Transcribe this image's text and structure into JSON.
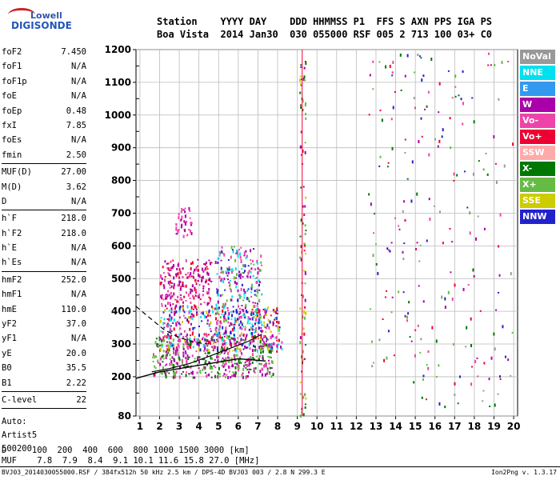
{
  "logo": {
    "line1": "Lowell",
    "line2": "DIGISONDE"
  },
  "header": {
    "line1": "Station    YYYY DAY    DDD HHMMSS P1  FFS S AXN PPS IGA PS",
    "line2": "Boa Vista  2014 Jan30  030 055000 RSF 005 2 713 100 03+ C0"
  },
  "params_group1": [
    {
      "name": "foF2",
      "value": "7.450"
    },
    {
      "name": "foF1",
      "value": "N/A"
    },
    {
      "name": "foF1p",
      "value": "N/A"
    },
    {
      "name": "foE",
      "value": "N/A"
    },
    {
      "name": "foEp",
      "value": "0.48"
    },
    {
      "name": "fxI",
      "value": "7.85"
    },
    {
      "name": "foEs",
      "value": "N/A"
    },
    {
      "name": "fmin",
      "value": "2.50"
    }
  ],
  "params_group2": [
    {
      "name": "MUF(D)",
      "value": "27.00"
    },
    {
      "name": "M(D)",
      "value": "3.62"
    },
    {
      "name": "D",
      "value": "N/A"
    }
  ],
  "params_group3": [
    {
      "name": "h`F",
      "value": "218.0"
    },
    {
      "name": "h`F2",
      "value": "218.0"
    },
    {
      "name": "h`E",
      "value": "N/A"
    },
    {
      "name": "h`Es",
      "value": "N/A"
    }
  ],
  "params_group4": [
    {
      "name": "hmF2",
      "value": "252.0"
    },
    {
      "name": "hmF1",
      "value": "N/A"
    },
    {
      "name": "hmE",
      "value": "110.0"
    },
    {
      "name": "yF2",
      "value": "37.0"
    },
    {
      "name": "yF1",
      "value": "N/A"
    },
    {
      "name": "yE",
      "value": "20.0"
    },
    {
      "name": "B0",
      "value": "35.5"
    },
    {
      "name": "B1",
      "value": "2.22"
    }
  ],
  "params_group5": [
    {
      "name": "C-level",
      "value": "22"
    }
  ],
  "extra": {
    "auto": "Auto:",
    "artist": "Artist5",
    "code": "500200"
  },
  "legend": [
    {
      "label": "NoVal",
      "color": "#999999"
    },
    {
      "label": "NNE",
      "color": "#00e0f0"
    },
    {
      "label": "E",
      "color": "#3399ee"
    },
    {
      "label": "W",
      "color": "#aa00aa"
    },
    {
      "label": "Vo-",
      "color": "#ee44aa"
    },
    {
      "label": "Vo+",
      "color": "#ee0033"
    },
    {
      "label": "SSW",
      "color": "#ffaaaa"
    },
    {
      "label": "X-",
      "color": "#007700"
    },
    {
      "label": "X+",
      "color": "#66bb44"
    },
    {
      "label": "SSE",
      "color": "#cccc00"
    },
    {
      "label": "NNW",
      "color": "#2222cc"
    }
  ],
  "footer": {
    "line1": "D     100  200  400  600  800 1000 1500 3000 [km]",
    "line2": "MUF    7.8  7.9  8.4  9.1 10.1 11.6 15.8 27.0 [MHz]",
    "line3": "BVJ03_2014030055000.RSF / 384fx512h 50 kHz 2.5 km / DPS-4D BVJ03 003 / 2.8 N 299.3 E",
    "version": "Ion2Png v. 1.3.17"
  },
  "chart_data": {
    "type": "scatter",
    "x_ticks": [
      1,
      2,
      3,
      4,
      5,
      6,
      7,
      8,
      9,
      10,
      11,
      12,
      13,
      14,
      15,
      16,
      17,
      18,
      19,
      20
    ],
    "y_ticks": [
      80,
      200,
      300,
      400,
      500,
      600,
      700,
      800,
      900,
      1000,
      1100,
      1200
    ],
    "xlim": [
      0.8,
      20.2
    ],
    "ylim": [
      80,
      1200
    ],
    "xlabel": "",
    "ylabel": "",
    "grid": true,
    "vertical_marker_x": 9.25,
    "trace_F2_lower": {
      "x": [
        0.8,
        2.0,
        3.0,
        4.0,
        5.0,
        6.0,
        7.0,
        7.4
      ],
      "y": [
        195,
        215,
        225,
        235,
        245,
        255,
        250,
        248
      ]
    },
    "trace_F2_curve": {
      "x": [
        1.6,
        2.5,
        3.5,
        4.5,
        5.5,
        6.5,
        7.2
      ],
      "y": [
        215,
        225,
        240,
        262,
        285,
        308,
        330
      ]
    },
    "trace_dashed": {
      "x": [
        0.8,
        1.5,
        2.2,
        3.0,
        3.8,
        4.5
      ],
      "y": [
        415,
        380,
        345,
        320,
        305,
        300
      ]
    },
    "point_clusters": [
      {
        "x": [
          1.6,
          7.8
        ],
        "y": [
          200,
          330
        ],
        "n": 500,
        "colors": [
          "#007700",
          "#66bb44",
          "#aa00aa",
          "#ee44aa"
        ]
      },
      {
        "x": [
          2.0,
          8.2
        ],
        "y": [
          280,
          420
        ],
        "n": 420,
        "colors": [
          "#aa00aa",
          "#ee44aa",
          "#2222cc",
          "#ee0033",
          "#cccc00",
          "#00e0f0"
        ]
      },
      {
        "x": [
          2.0,
          4.6
        ],
        "y": [
          420,
          560
        ],
        "n": 200,
        "colors": [
          "#aa00aa",
          "#ee44aa",
          "#ee0033"
        ]
      },
      {
        "x": [
          4.8,
          7.2
        ],
        "y": [
          330,
          600
        ],
        "n": 260,
        "colors": [
          "#ee44aa",
          "#aa00aa",
          "#2222cc",
          "#66bb44",
          "#00e0f0"
        ]
      },
      {
        "x": [
          2.8,
          3.6
        ],
        "y": [
          630,
          720
        ],
        "n": 40,
        "colors": [
          "#ee44aa",
          "#aa00aa"
        ]
      },
      {
        "x": [
          9.1,
          9.4
        ],
        "y": [
          80,
          1180
        ],
        "n": 90,
        "colors": [
          "#cccc00",
          "#66bb44",
          "#ee0033",
          "#aa00aa",
          "#007700"
        ]
      },
      {
        "x": [
          12.6,
          20.0
        ],
        "y": [
          100,
          1200
        ],
        "n": 220,
        "colors": [
          "#007700",
          "#aa00aa",
          "#ee0033",
          "#66bb44",
          "#2222cc",
          "#ee44aa",
          "#999999"
        ]
      }
    ]
  }
}
